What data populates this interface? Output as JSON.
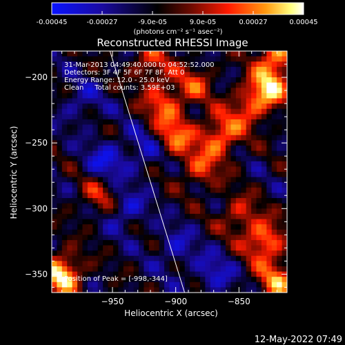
{
  "chart_data": {
    "type": "heatmap",
    "title": "Reconstructed RHESSI Image",
    "xlabel": "Heliocentric X (arcsec)",
    "ylabel": "Heliocentric Y (arcsec)",
    "xlim": [
      -998,
      -812
    ],
    "ylim": [
      -364,
      -180
    ],
    "x_ticks": [
      -950,
      -900,
      -850
    ],
    "y_ticks": [
      -200,
      -250,
      -300,
      -350
    ],
    "colorbar": {
      "vmin": -0.00045,
      "vmax": 0.00045,
      "tick_values": [
        -0.00045,
        -0.00027,
        -9e-05,
        9e-05,
        0.00027,
        0.00045
      ],
      "tick_labels": [
        "-0.00045",
        "-0.00027",
        "-9.0e-05",
        "9.0e-05",
        "0.00027",
        "0.00045"
      ],
      "units_label": "(photons cm⁻² s⁻¹ asec⁻²)",
      "colormap": [
        "#0a14ff",
        "#1a0aa0",
        "#000000",
        "#6a0a00",
        "#ff1a00",
        "#ff9a10",
        "#ffff80",
        "#ffffff"
      ]
    },
    "annotations": [
      "31-Mar-2013 04:49:40.000 to 04:52:52.000",
      "Detectors: 3F 4F 5F 6F 7F 8F, Att 0",
      "Energy Range: 12.0 - 25.0 keV",
      "Clean     Total counts: 3.59E+03",
      "Position of Peak = [-998,-344]"
    ],
    "peak": {
      "x": -998,
      "y": -344
    },
    "hotspots": [
      {
        "x": -990,
        "y": -350,
        "v": 1.15
      },
      {
        "x": -960,
        "y": -290,
        "v": 0.55
      },
      {
        "x": -920,
        "y": -190,
        "v": 0.6
      },
      {
        "x": -910,
        "y": -220,
        "v": 0.7
      },
      {
        "x": -900,
        "y": -245,
        "v": 0.75
      },
      {
        "x": -885,
        "y": -205,
        "v": 0.55
      },
      {
        "x": -865,
        "y": -245,
        "v": 0.85
      },
      {
        "x": -880,
        "y": -270,
        "v": 0.6
      },
      {
        "x": -845,
        "y": -225,
        "v": 0.55
      },
      {
        "x": -828,
        "y": -210,
        "v": 1.0
      },
      {
        "x": -820,
        "y": -185,
        "v": 0.9
      },
      {
        "x": -830,
        "y": -325,
        "v": 0.9
      },
      {
        "x": -820,
        "y": -355,
        "v": 0.8
      },
      {
        "x": -850,
        "y": -305,
        "v": 0.55
      }
    ],
    "coldspots": [
      {
        "x": -955,
        "y": -265,
        "v": -0.55
      },
      {
        "x": -940,
        "y": -300,
        "v": -0.5
      },
      {
        "x": -925,
        "y": -255,
        "v": -0.4
      },
      {
        "x": -870,
        "y": -350,
        "v": -0.45
      },
      {
        "x": -975,
        "y": -220,
        "v": -0.35
      },
      {
        "x": -900,
        "y": -330,
        "v": -0.4
      }
    ],
    "limb_line": {
      "x": [
        -952,
        -893
      ],
      "y": [
        -180,
        -364
      ]
    }
  },
  "footer": {
    "timestamp": "12-May-2022 07:49"
  }
}
